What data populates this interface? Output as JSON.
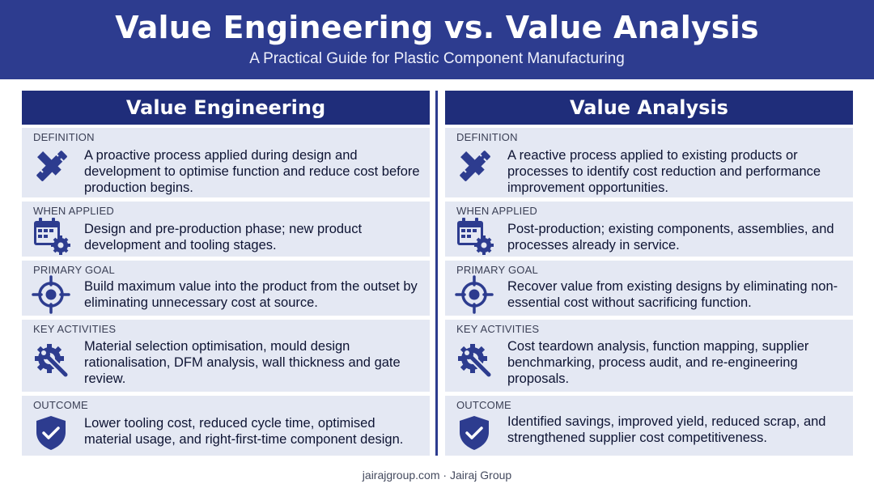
{
  "header": {
    "title": "Value Engineering vs. Value Analysis",
    "subtitle": "A Practical Guide for Plastic Component Manufacturing"
  },
  "colors": {
    "header_bg": "#2d3c8f",
    "column_header_bg": "#1f2d7a",
    "card_bg": "#e4e8f3",
    "icon": "#2d3c8f"
  },
  "columns": [
    {
      "title": "Value Engineering",
      "sections": [
        {
          "label": "DEFINITION",
          "icon": "pencil-ruler-icon",
          "text": "A proactive process applied during design and development to optimise function and reduce cost before production begins."
        },
        {
          "label": "WHEN APPLIED",
          "icon": "calendar-gear-icon",
          "text": "Design and pre-production phase; new product development and tooling stages."
        },
        {
          "label": "PRIMARY GOAL",
          "icon": "target-icon",
          "text": "Build maximum value into the product from the outset by eliminating unnecessary cost at source."
        },
        {
          "label": "KEY ACTIVITIES",
          "icon": "wrench-gear-icon",
          "text": "Material selection optimisation, mould design rationalisation, DFM analysis, wall thickness and gate review."
        },
        {
          "label": "OUTCOME",
          "icon": "shield-check-icon",
          "text": "Lower tooling cost, reduced cycle time, optimised material usage, and right-first-time component design."
        }
      ]
    },
    {
      "title": "Value Analysis",
      "sections": [
        {
          "label": "DEFINITION",
          "icon": "pencil-ruler-icon",
          "text": "A reactive process applied to existing products or processes to identify cost reduction and performance improvement opportunities."
        },
        {
          "label": "WHEN APPLIED",
          "icon": "calendar-gear-icon",
          "text": "Post-production; existing components, assemblies, and processes already in service."
        },
        {
          "label": "PRIMARY GOAL",
          "icon": "target-icon",
          "text": "Recover value from existing designs by eliminating non-essential cost without sacrificing function."
        },
        {
          "label": "KEY ACTIVITIES",
          "icon": "wrench-gear-icon",
          "text": "Cost teardown analysis, function mapping, supplier benchmarking, process audit, and re-engineering proposals."
        },
        {
          "label": "OUTCOME",
          "icon": "shield-check-icon",
          "text": "Identified savings, improved yield, reduced scrap, and strengthened supplier cost competitiveness."
        }
      ]
    }
  ],
  "footer": {
    "text": "jairajgroup.com · Jairaj Group"
  }
}
